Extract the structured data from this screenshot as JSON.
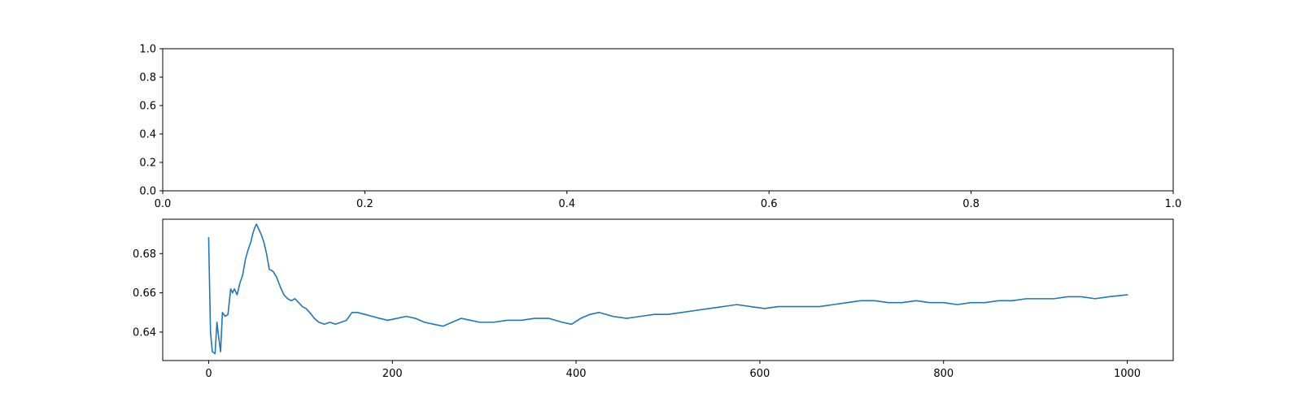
{
  "chart_data": [
    {
      "type": "empty",
      "title": "",
      "xlabel": "",
      "ylabel": "",
      "xlim": [
        0,
        1
      ],
      "ylim": [
        0,
        1
      ],
      "xticks": [
        "0.0",
        "0.2",
        "0.4",
        "0.6",
        "0.8",
        "1.0"
      ],
      "yticks": [
        "0.0",
        "0.2",
        "0.4",
        "0.6",
        "0.8",
        "1.0"
      ],
      "grid": false,
      "series": []
    },
    {
      "type": "line",
      "title": "",
      "xlabel": "",
      "ylabel": "",
      "xlim": [
        -50,
        1050
      ],
      "ylim": [
        0.6255,
        0.6975
      ],
      "xticks": [
        "0",
        "200",
        "400",
        "600",
        "800",
        "1000"
      ],
      "yticks": [
        "0.64",
        "0.66",
        "0.68"
      ],
      "grid": false,
      "series": [
        {
          "color": "#1f77b4",
          "points": [
            [
              0,
              0.688
            ],
            [
              2,
              0.64
            ],
            [
              4,
              0.63
            ],
            [
              7,
              0.629
            ],
            [
              9,
              0.645
            ],
            [
              11,
              0.637
            ],
            [
              13,
              0.63
            ],
            [
              15,
              0.65
            ],
            [
              18,
              0.648
            ],
            [
              21,
              0.649
            ],
            [
              24,
              0.662
            ],
            [
              26,
              0.66
            ],
            [
              28,
              0.662
            ],
            [
              31,
              0.659
            ],
            [
              34,
              0.665
            ],
            [
              37,
              0.669
            ],
            [
              40,
              0.677
            ],
            [
              43,
              0.682
            ],
            [
              46,
              0.686
            ],
            [
              48,
              0.69
            ],
            [
              50,
              0.693
            ],
            [
              52,
              0.695
            ],
            [
              54,
              0.693
            ],
            [
              57,
              0.69
            ],
            [
              60,
              0.686
            ],
            [
              63,
              0.68
            ],
            [
              66,
              0.672
            ],
            [
              70,
              0.671
            ],
            [
              74,
              0.668
            ],
            [
              78,
              0.663
            ],
            [
              82,
              0.659
            ],
            [
              86,
              0.657
            ],
            [
              90,
              0.656
            ],
            [
              94,
              0.657
            ],
            [
              98,
              0.655
            ],
            [
              102,
              0.653
            ],
            [
              106,
              0.652
            ],
            [
              110,
              0.65
            ],
            [
              115,
              0.647
            ],
            [
              120,
              0.645
            ],
            [
              126,
              0.644
            ],
            [
              132,
              0.645
            ],
            [
              138,
              0.644
            ],
            [
              144,
              0.645
            ],
            [
              150,
              0.646
            ],
            [
              156,
              0.65
            ],
            [
              162,
              0.65
            ],
            [
              170,
              0.649
            ],
            [
              178,
              0.648
            ],
            [
              186,
              0.647
            ],
            [
              195,
              0.646
            ],
            [
              205,
              0.647
            ],
            [
              215,
              0.648
            ],
            [
              225,
              0.647
            ],
            [
              235,
              0.645
            ],
            [
              245,
              0.644
            ],
            [
              255,
              0.643
            ],
            [
              265,
              0.645
            ],
            [
              275,
              0.647
            ],
            [
              285,
              0.646
            ],
            [
              295,
              0.645
            ],
            [
              310,
              0.645
            ],
            [
              325,
              0.646
            ],
            [
              340,
              0.646
            ],
            [
              355,
              0.647
            ],
            [
              370,
              0.647
            ],
            [
              385,
              0.645
            ],
            [
              395,
              0.644
            ],
            [
              405,
              0.647
            ],
            [
              415,
              0.649
            ],
            [
              425,
              0.65
            ],
            [
              440,
              0.648
            ],
            [
              455,
              0.647
            ],
            [
              470,
              0.648
            ],
            [
              485,
              0.649
            ],
            [
              500,
              0.649
            ],
            [
              515,
              0.65
            ],
            [
              530,
              0.651
            ],
            [
              545,
              0.652
            ],
            [
              560,
              0.653
            ],
            [
              575,
              0.654
            ],
            [
              590,
              0.653
            ],
            [
              605,
              0.652
            ],
            [
              620,
              0.653
            ],
            [
              635,
              0.653
            ],
            [
              650,
              0.653
            ],
            [
              665,
              0.653
            ],
            [
              680,
              0.654
            ],
            [
              695,
              0.655
            ],
            [
              710,
              0.656
            ],
            [
              725,
              0.656
            ],
            [
              740,
              0.655
            ],
            [
              755,
              0.655
            ],
            [
              770,
              0.656
            ],
            [
              785,
              0.655
            ],
            [
              800,
              0.655
            ],
            [
              815,
              0.654
            ],
            [
              830,
              0.655
            ],
            [
              845,
              0.655
            ],
            [
              860,
              0.656
            ],
            [
              875,
              0.656
            ],
            [
              890,
              0.657
            ],
            [
              905,
              0.657
            ],
            [
              920,
              0.657
            ],
            [
              935,
              0.658
            ],
            [
              950,
              0.658
            ],
            [
              965,
              0.657
            ],
            [
              980,
              0.658
            ],
            [
              1000,
              0.659
            ]
          ]
        }
      ]
    }
  ]
}
